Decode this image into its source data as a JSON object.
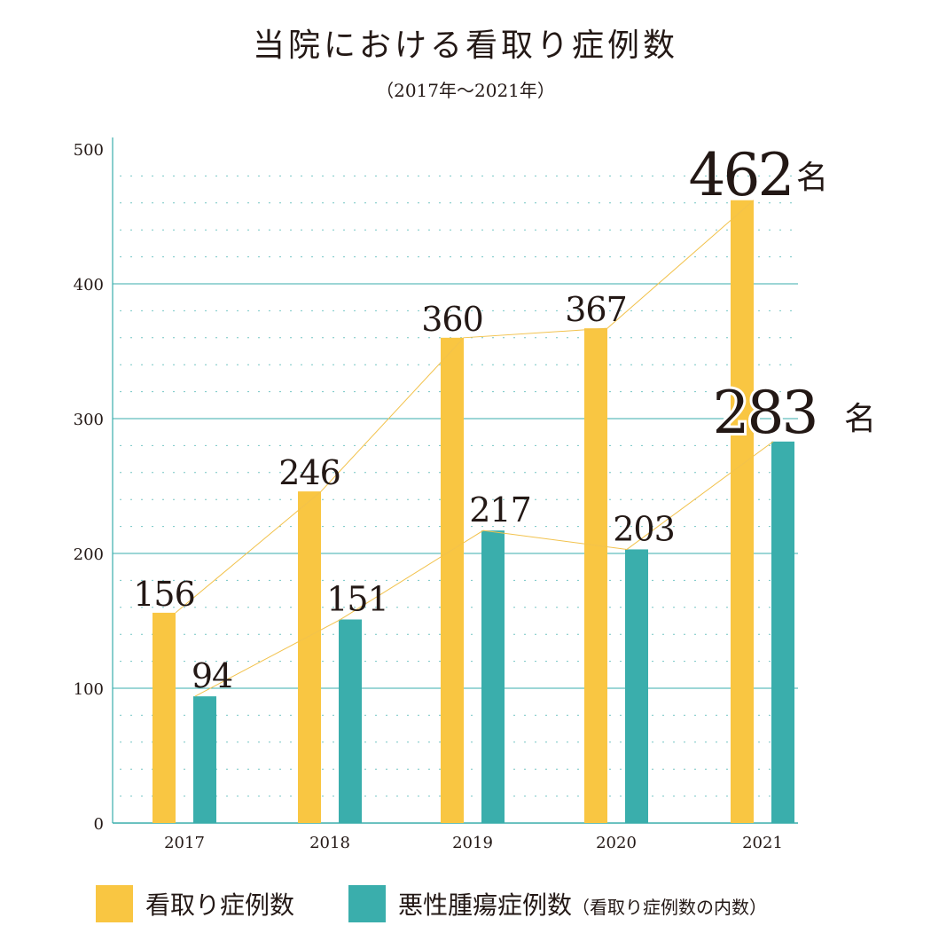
{
  "title": "当院における看取り症例数",
  "subtitle": "（2017年～2021年）",
  "colors": {
    "mitori": "#f9c642",
    "cancer": "#3aaeac",
    "grid": "#3aaeac",
    "line": "#f2c24c",
    "text": "#231815"
  },
  "chart_data": {
    "type": "bar",
    "categories": [
      "2017",
      "2018",
      "2019",
      "2020",
      "2021"
    ],
    "series": [
      {
        "name": "看取り症例数",
        "values": [
          156,
          246,
          360,
          367,
          462
        ]
      },
      {
        "name": "悪性腫瘍症例数",
        "values": [
          94,
          151,
          217,
          203,
          283
        ]
      }
    ],
    "ylim": [
      0,
      500
    ],
    "yticks": [
      "0",
      "100",
      "200",
      "300",
      "400",
      "500"
    ],
    "data_labels": [
      [
        "156",
        "246",
        "360",
        "367",
        "462"
      ],
      [
        "94",
        "151",
        "217",
        "203",
        "283"
      ]
    ],
    "unit": "名",
    "legend": {
      "position": "bottom"
    }
  },
  "legend": {
    "item1": "看取り症例数",
    "item2": "悪性腫瘍症例数",
    "item2_note": "（看取り症例数の内数）"
  }
}
